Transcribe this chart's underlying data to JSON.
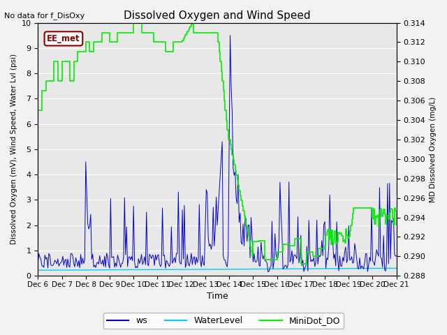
{
  "title": "Dissolved Oxygen and Wind Speed",
  "no_data_text": "No data for f_DisOxy",
  "ee_met_label": "EE_met",
  "xlabel": "Time",
  "ylabel_left": "Dissolved Oxygen (mV), Wind Speed, Water Lvl (psi)",
  "ylabel_right": "MD Dissolved Oxygen (mg/L)",
  "ylim_left": [
    0,
    10
  ],
  "ylim_right": [
    0.288,
    0.314
  ],
  "yticks_left": [
    0.0,
    1.0,
    2.0,
    3.0,
    4.0,
    5.0,
    6.0,
    7.0,
    8.0,
    9.0,
    10.0
  ],
  "yticks_right": [
    0.288,
    0.29,
    0.292,
    0.294,
    0.296,
    0.298,
    0.3,
    0.302,
    0.304,
    0.306,
    0.308,
    0.31,
    0.312,
    0.314
  ],
  "bg_color": "#e8e8e8",
  "fig_bg_color": "#f2f2f2",
  "ws_color": "#0000cc",
  "water_level_color": "#00ccff",
  "minidot_color": "#00ee00",
  "legend_labels": [
    "ws",
    "WaterLevel",
    "MiniDot_DO"
  ]
}
